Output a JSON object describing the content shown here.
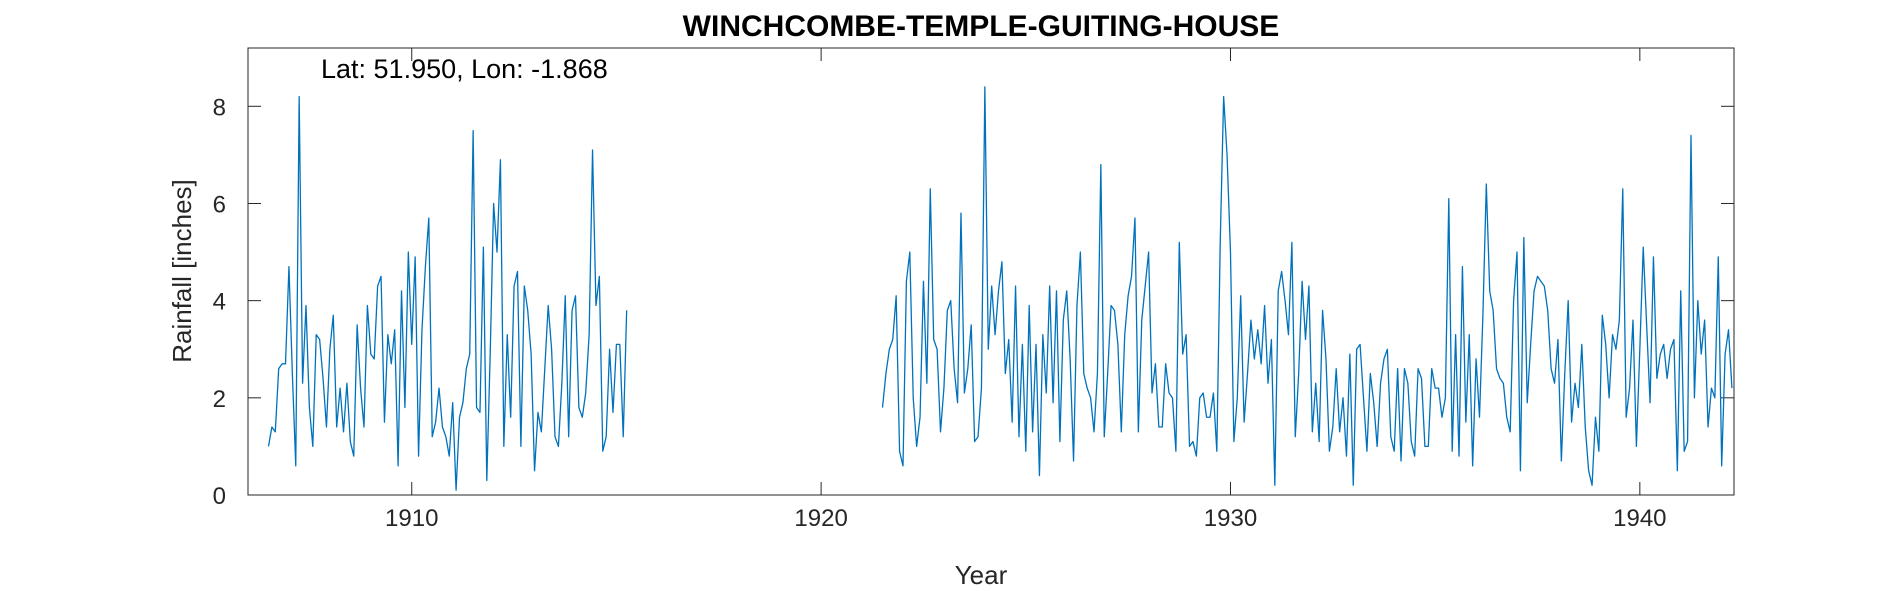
{
  "chart_data": {
    "type": "line",
    "title": "WINCHCOMBE-TEMPLE-GUITING-HOUSE",
    "annotation": "Lat: 51.950, Lon: -1.868",
    "xlabel": "Year",
    "ylabel": "Rainfall [inches]",
    "xlim": [
      1906,
      1942.3
    ],
    "ylim": [
      0,
      9.2
    ],
    "xticks": [
      1910,
      1920,
      1930,
      1940
    ],
    "yticks": [
      0,
      2,
      4,
      6,
      8
    ],
    "grid": false,
    "line_color": "#0072BD",
    "series": [
      {
        "segments": [
          {
            "x_start": 1906.5,
            "step": 0.08333,
            "values": [
              1.0,
              1.4,
              1.3,
              2.6,
              2.7,
              2.7,
              4.7,
              2.5,
              0.6,
              8.2,
              2.3,
              3.9,
              1.8,
              1.0,
              3.3,
              3.2,
              2.4,
              1.4,
              3.0,
              3.7,
              1.4,
              2.2,
              1.3,
              2.3,
              1.1,
              0.8,
              3.5,
              2.2,
              1.4,
              3.9,
              2.9,
              2.8,
              4.3,
              4.5,
              1.5,
              3.3,
              2.7,
              3.4,
              0.6,
              4.2,
              1.8,
              5.0,
              3.1,
              4.9,
              0.8,
              3.4,
              4.7,
              5.7,
              1.2,
              1.5,
              2.2,
              1.4,
              1.2,
              0.8,
              1.9,
              0.1,
              1.6,
              1.9,
              2.6,
              2.9,
              7.5,
              1.8,
              1.7,
              5.1,
              0.3,
              2.9,
              6.0,
              5.0,
              6.9,
              1.0,
              3.3,
              1.6,
              4.3,
              4.6,
              1.0,
              4.3,
              3.8,
              2.9,
              0.5,
              1.7,
              1.3,
              2.6,
              3.9,
              3.0,
              1.2,
              1.0,
              2.3,
              4.1,
              1.2,
              3.8,
              4.1,
              1.8,
              1.6,
              2.1,
              3.3,
              7.1,
              3.9,
              4.5,
              0.9,
              1.2,
              3.0,
              1.7,
              3.1,
              3.1,
              1.2,
              3.8
            ]
          },
          {
            "x_start": 1921.5,
            "step": 0.08333,
            "values": [
              1.8,
              2.5,
              3.0,
              3.2,
              4.1,
              0.9,
              0.6,
              4.4,
              5.0,
              2.0,
              1.0,
              1.6,
              4.4,
              2.3,
              6.3,
              3.2,
              3.0,
              1.3,
              2.2,
              3.8,
              4.0,
              2.6,
              1.9,
              5.8,
              2.1,
              2.6,
              3.5,
              1.1,
              1.2,
              2.2,
              8.4,
              3.0,
              4.3,
              3.3,
              4.2,
              4.8,
              2.5,
              3.2,
              1.5,
              4.3,
              1.2,
              3.1,
              0.9,
              3.9,
              1.3,
              3.1,
              0.4,
              3.3,
              2.1,
              4.3,
              1.9,
              4.2,
              1.1,
              3.6,
              4.2,
              2.8,
              0.7,
              3.9,
              5.0,
              2.5,
              2.2,
              2.0,
              1.3,
              2.5,
              6.8,
              1.2,
              2.5,
              3.9,
              3.8,
              3.1,
              1.3,
              3.3,
              4.1,
              4.5,
              5.7,
              1.3,
              3.6,
              4.3,
              5.0,
              2.1,
              2.7,
              1.4,
              1.4,
              2.7,
              2.1,
              2.0,
              0.9,
              5.2,
              2.9,
              3.3,
              1.0,
              1.1,
              0.8,
              2.0,
              2.1,
              1.6,
              1.6,
              2.1,
              0.9,
              5.2,
              8.2,
              7.0,
              5.0,
              1.1,
              2.0,
              4.1,
              1.5,
              2.5,
              3.6,
              2.8,
              3.4,
              2.7,
              3.9,
              2.3,
              3.2,
              0.2,
              4.2,
              4.6,
              4.0,
              3.3,
              5.2,
              1.2,
              2.5,
              4.4,
              3.2,
              4.3,
              1.3,
              2.3,
              1.1,
              3.8,
              2.8,
              0.9,
              1.4,
              2.6,
              1.3,
              2.0,
              0.8,
              2.9,
              0.2,
              3.0,
              3.1,
              2.0,
              0.9,
              2.5,
              1.9,
              1.0,
              2.3,
              2.8,
              3.0,
              1.2,
              0.9,
              2.6,
              0.7,
              2.6,
              2.3,
              1.1,
              0.8,
              2.6,
              2.4,
              1.0,
              1.0,
              2.6,
              2.2,
              2.2,
              1.6,
              2.0,
              6.1,
              0.9,
              3.3,
              0.8,
              4.7,
              1.5,
              3.3,
              0.6,
              2.8,
              1.6,
              3.7,
              6.4,
              4.2,
              3.8,
              2.6,
              2.4,
              2.3,
              1.6,
              1.3,
              4.0,
              5.0,
              0.5,
              5.3,
              1.9,
              3.1,
              4.2,
              4.5,
              4.4,
              4.3,
              3.8,
              2.6,
              2.3,
              3.2,
              0.7,
              2.5,
              4.0,
              1.5,
              2.3,
              1.8,
              3.1,
              1.4,
              0.5,
              0.2,
              1.6,
              0.9,
              3.7,
              3.1,
              2.0,
              3.3,
              3.0,
              3.6,
              6.3,
              1.6,
              2.2,
              3.6,
              1.0,
              3.0,
              5.1,
              3.5,
              1.9,
              4.9,
              2.4,
              2.9,
              3.1,
              2.4,
              3.0,
              3.2,
              0.5,
              4.2,
              0.9,
              1.1,
              7.4,
              2.0,
              4.0,
              2.9,
              3.6,
              1.4,
              2.2,
              2.0,
              4.9,
              0.6,
              2.9,
              3.4,
              2.2
            ]
          }
        ]
      }
    ]
  }
}
